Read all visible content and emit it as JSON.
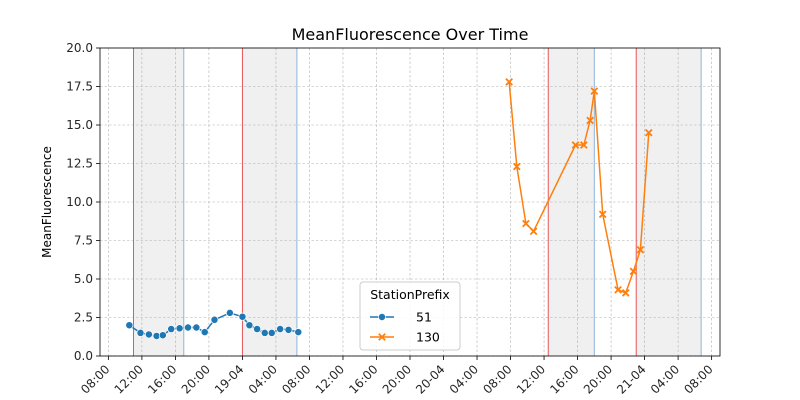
{
  "chart_data": {
    "type": "line",
    "title": "MeanFluorescence Over Time",
    "xlabel": "",
    "ylabel": "MeanFluorescence",
    "ylim": [
      0,
      20
    ],
    "xlim": [
      "2023-04-18T07:00",
      "2023-04-21T09:00"
    ],
    "y_ticks": [
      "0.0",
      "2.5",
      "5.0",
      "7.5",
      "10.0",
      "12.5",
      "15.0",
      "17.5",
      "20.0"
    ],
    "x_ticks": [
      {
        "t": "2023-04-18T08:00",
        "label": "08:00"
      },
      {
        "t": "2023-04-18T12:00",
        "label": "12:00"
      },
      {
        "t": "2023-04-18T16:00",
        "label": "16:00"
      },
      {
        "t": "2023-04-18T20:00",
        "label": "20:00"
      },
      {
        "t": "2023-04-19T00:00",
        "label": "19-04"
      },
      {
        "t": "2023-04-19T04:00",
        "label": "04:00"
      },
      {
        "t": "2023-04-19T08:00",
        "label": "08:00"
      },
      {
        "t": "2023-04-19T12:00",
        "label": "12:00"
      },
      {
        "t": "2023-04-19T16:00",
        "label": "16:00"
      },
      {
        "t": "2023-04-19T20:00",
        "label": "20:00"
      },
      {
        "t": "2023-04-20T00:00",
        "label": "20-04"
      },
      {
        "t": "2023-04-20T04:00",
        "label": "04:00"
      },
      {
        "t": "2023-04-20T08:00",
        "label": "08:00"
      },
      {
        "t": "2023-04-20T12:00",
        "label": "12:00"
      },
      {
        "t": "2023-04-20T16:00",
        "label": "16:00"
      },
      {
        "t": "2023-04-20T20:00",
        "label": "20:00"
      },
      {
        "t": "2023-04-21T00:00",
        "label": "21-04"
      },
      {
        "t": "2023-04-21T04:00",
        "label": "04:00"
      },
      {
        "t": "2023-04-21T08:00",
        "label": "08:00"
      }
    ],
    "grid": true,
    "legend": {
      "title": "StationPrefix",
      "placement": "lower center"
    },
    "night_bands": [
      {
        "start": "2023-04-18T11:00",
        "end": "2023-04-18T17:00"
      },
      {
        "start": "2023-04-19T00:00",
        "end": "2023-04-19T06:30"
      },
      {
        "start": "2023-04-20T12:30",
        "end": "2023-04-20T18:00"
      },
      {
        "start": "2023-04-20T23:00",
        "end": "2023-04-21T06:45"
      }
    ],
    "band_color": "#f0f0f0",
    "start_line_color": "#e8575a",
    "end_line_color": "#8fb5d8",
    "series": [
      {
        "name": "51",
        "color": "#1f77b4",
        "marker": "circle",
        "points": [
          {
            "x": "2023-04-18T10:30",
            "y": 2.0
          },
          {
            "x": "2023-04-18T11:50",
            "y": 1.5
          },
          {
            "x": "2023-04-18T12:50",
            "y": 1.4
          },
          {
            "x": "2023-04-18T13:45",
            "y": 1.3
          },
          {
            "x": "2023-04-18T14:30",
            "y": 1.35
          },
          {
            "x": "2023-04-18T15:30",
            "y": 1.75
          },
          {
            "x": "2023-04-18T16:30",
            "y": 1.8
          },
          {
            "x": "2023-04-18T17:30",
            "y": 1.85
          },
          {
            "x": "2023-04-18T18:30",
            "y": 1.85
          },
          {
            "x": "2023-04-18T19:30",
            "y": 1.55
          },
          {
            "x": "2023-04-18T20:40",
            "y": 2.35
          },
          {
            "x": "2023-04-18T22:30",
            "y": 2.8
          },
          {
            "x": "2023-04-19T00:00",
            "y": 2.55
          },
          {
            "x": "2023-04-19T00:50",
            "y": 2.0
          },
          {
            "x": "2023-04-19T01:45",
            "y": 1.75
          },
          {
            "x": "2023-04-19T02:40",
            "y": 1.5
          },
          {
            "x": "2023-04-19T03:30",
            "y": 1.5
          },
          {
            "x": "2023-04-19T04:30",
            "y": 1.75
          },
          {
            "x": "2023-04-19T05:30",
            "y": 1.7
          },
          {
            "x": "2023-04-19T06:40",
            "y": 1.55
          }
        ]
      },
      {
        "name": "130",
        "color": "#ff7f0e",
        "marker": "x",
        "points": [
          {
            "x": "2023-04-20T07:50",
            "y": 17.8
          },
          {
            "x": "2023-04-20T08:45",
            "y": 12.3
          },
          {
            "x": "2023-04-20T09:50",
            "y": 8.6
          },
          {
            "x": "2023-04-20T10:45",
            "y": 8.1
          },
          {
            "x": "2023-04-20T15:45",
            "y": 13.7
          },
          {
            "x": "2023-04-20T16:45",
            "y": 13.7
          },
          {
            "x": "2023-04-20T17:30",
            "y": 15.3
          },
          {
            "x": "2023-04-20T18:00",
            "y": 17.2
          },
          {
            "x": "2023-04-20T19:00",
            "y": 9.2
          },
          {
            "x": "2023-04-20T20:50",
            "y": 4.3
          },
          {
            "x": "2023-04-20T21:45",
            "y": 4.1
          },
          {
            "x": "2023-04-20T22:40",
            "y": 5.5
          },
          {
            "x": "2023-04-20T23:30",
            "y": 6.9
          },
          {
            "x": "2023-04-21T00:30",
            "y": 14.5
          }
        ]
      }
    ]
  }
}
